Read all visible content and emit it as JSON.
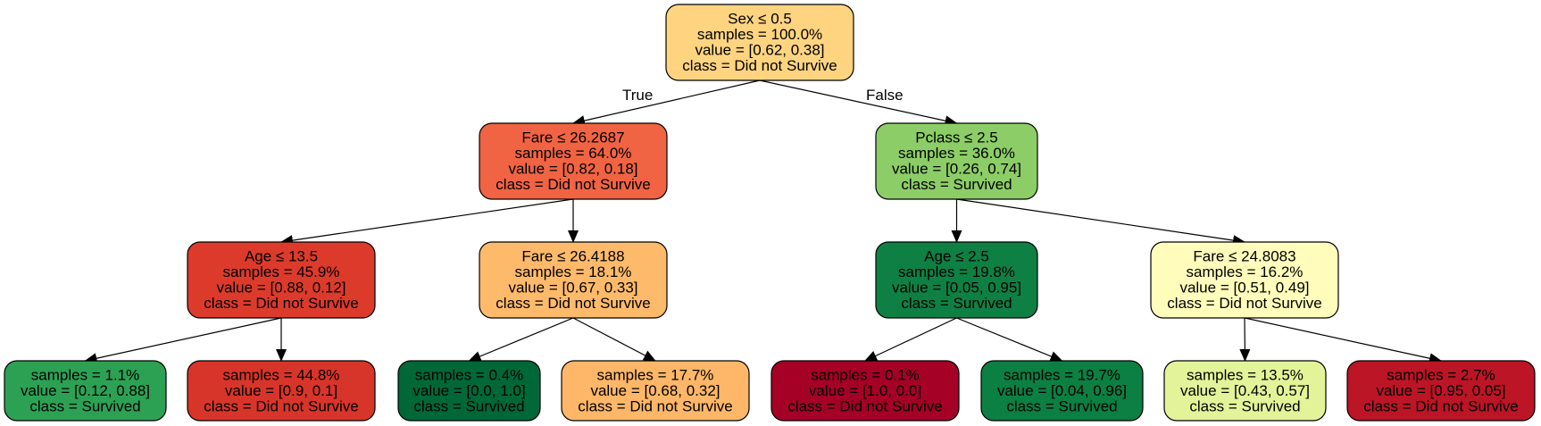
{
  "nodes": [
    {
      "id": "n0",
      "lines": [
        "Sex ≤ 0.5",
        "samples = 100.0%",
        "value = [0.62, 0.38]",
        "class = Did not Survive"
      ],
      "fill": "#fed481"
    },
    {
      "id": "n1",
      "lines": [
        "Fare ≤ 26.2687",
        "samples = 64.0%",
        "value = [0.82, 0.18]",
        "class = Did not Survive"
      ],
      "fill": "#f06443"
    },
    {
      "id": "n2",
      "lines": [
        "Age ≤ 13.5",
        "samples = 45.9%",
        "value = [0.88, 0.12]",
        "class = Did not Survive"
      ],
      "fill": "#dc3b2c"
    },
    {
      "id": "n3",
      "lines": [
        "samples = 1.1%",
        "value = [0.12, 0.88]",
        "class = Survived"
      ],
      "fill": "#2ca154"
    },
    {
      "id": "n4",
      "lines": [
        "samples = 44.8%",
        "value = [0.9, 0.1]",
        "class = Did not Survive"
      ],
      "fill": "#d8352a"
    },
    {
      "id": "n5",
      "lines": [
        "Fare ≤ 26.4188",
        "samples = 18.1%",
        "value = [0.67, 0.33]",
        "class = Did not Survive"
      ],
      "fill": "#feba6b"
    },
    {
      "id": "n6",
      "lines": [
        "samples = 0.4%",
        "value = [0.0, 1.0]",
        "class = Survived"
      ],
      "fill": "#006837"
    },
    {
      "id": "n7",
      "lines": [
        "samples = 17.7%",
        "value = [0.68, 0.32]",
        "class = Did not Survive"
      ],
      "fill": "#feb769"
    },
    {
      "id": "n8",
      "lines": [
        "Pclass ≤ 2.5",
        "samples = 36.0%",
        "value = [0.26, 0.74]",
        "class = Survived"
      ],
      "fill": "#8ccd67"
    },
    {
      "id": "n9",
      "lines": [
        "Age ≤ 2.5",
        "samples = 19.8%",
        "value = [0.05, 0.95]",
        "class = Survived"
      ],
      "fill": "#0e8043"
    },
    {
      "id": "n10",
      "lines": [
        "samples = 0.1%",
        "value = [1.0, 0.0]",
        "class = Did not Survive"
      ],
      "fill": "#a50026"
    },
    {
      "id": "n11",
      "lines": [
        "samples = 19.7%",
        "value = [0.04, 0.96]",
        "class = Survived"
      ],
      "fill": "#0c7f42"
    },
    {
      "id": "n12",
      "lines": [
        "Fare ≤ 24.8083",
        "samples = 16.2%",
        "value = [0.51, 0.49]",
        "class = Did not Survive"
      ],
      "fill": "#fffcbc"
    },
    {
      "id": "n13",
      "lines": [
        "samples = 13.5%",
        "value = [0.43, 0.57]",
        "class = Survived"
      ],
      "fill": "#e3f399"
    },
    {
      "id": "n14",
      "lines": [
        "samples = 2.7%",
        "value = [0.95, 0.05]",
        "class = Did not Survive"
      ],
      "fill": "#bb1526"
    }
  ],
  "edges": [
    {
      "from": "n0",
      "to": "n1",
      "label": "True"
    },
    {
      "from": "n0",
      "to": "n8",
      "label": "False"
    },
    {
      "from": "n1",
      "to": "n2"
    },
    {
      "from": "n1",
      "to": "n5"
    },
    {
      "from": "n2",
      "to": "n3"
    },
    {
      "from": "n2",
      "to": "n4"
    },
    {
      "from": "n5",
      "to": "n6"
    },
    {
      "from": "n5",
      "to": "n7"
    },
    {
      "from": "n8",
      "to": "n9"
    },
    {
      "from": "n8",
      "to": "n12"
    },
    {
      "from": "n9",
      "to": "n10"
    },
    {
      "from": "n9",
      "to": "n11"
    },
    {
      "from": "n12",
      "to": "n13"
    },
    {
      "from": "n12",
      "to": "n14"
    }
  ]
}
